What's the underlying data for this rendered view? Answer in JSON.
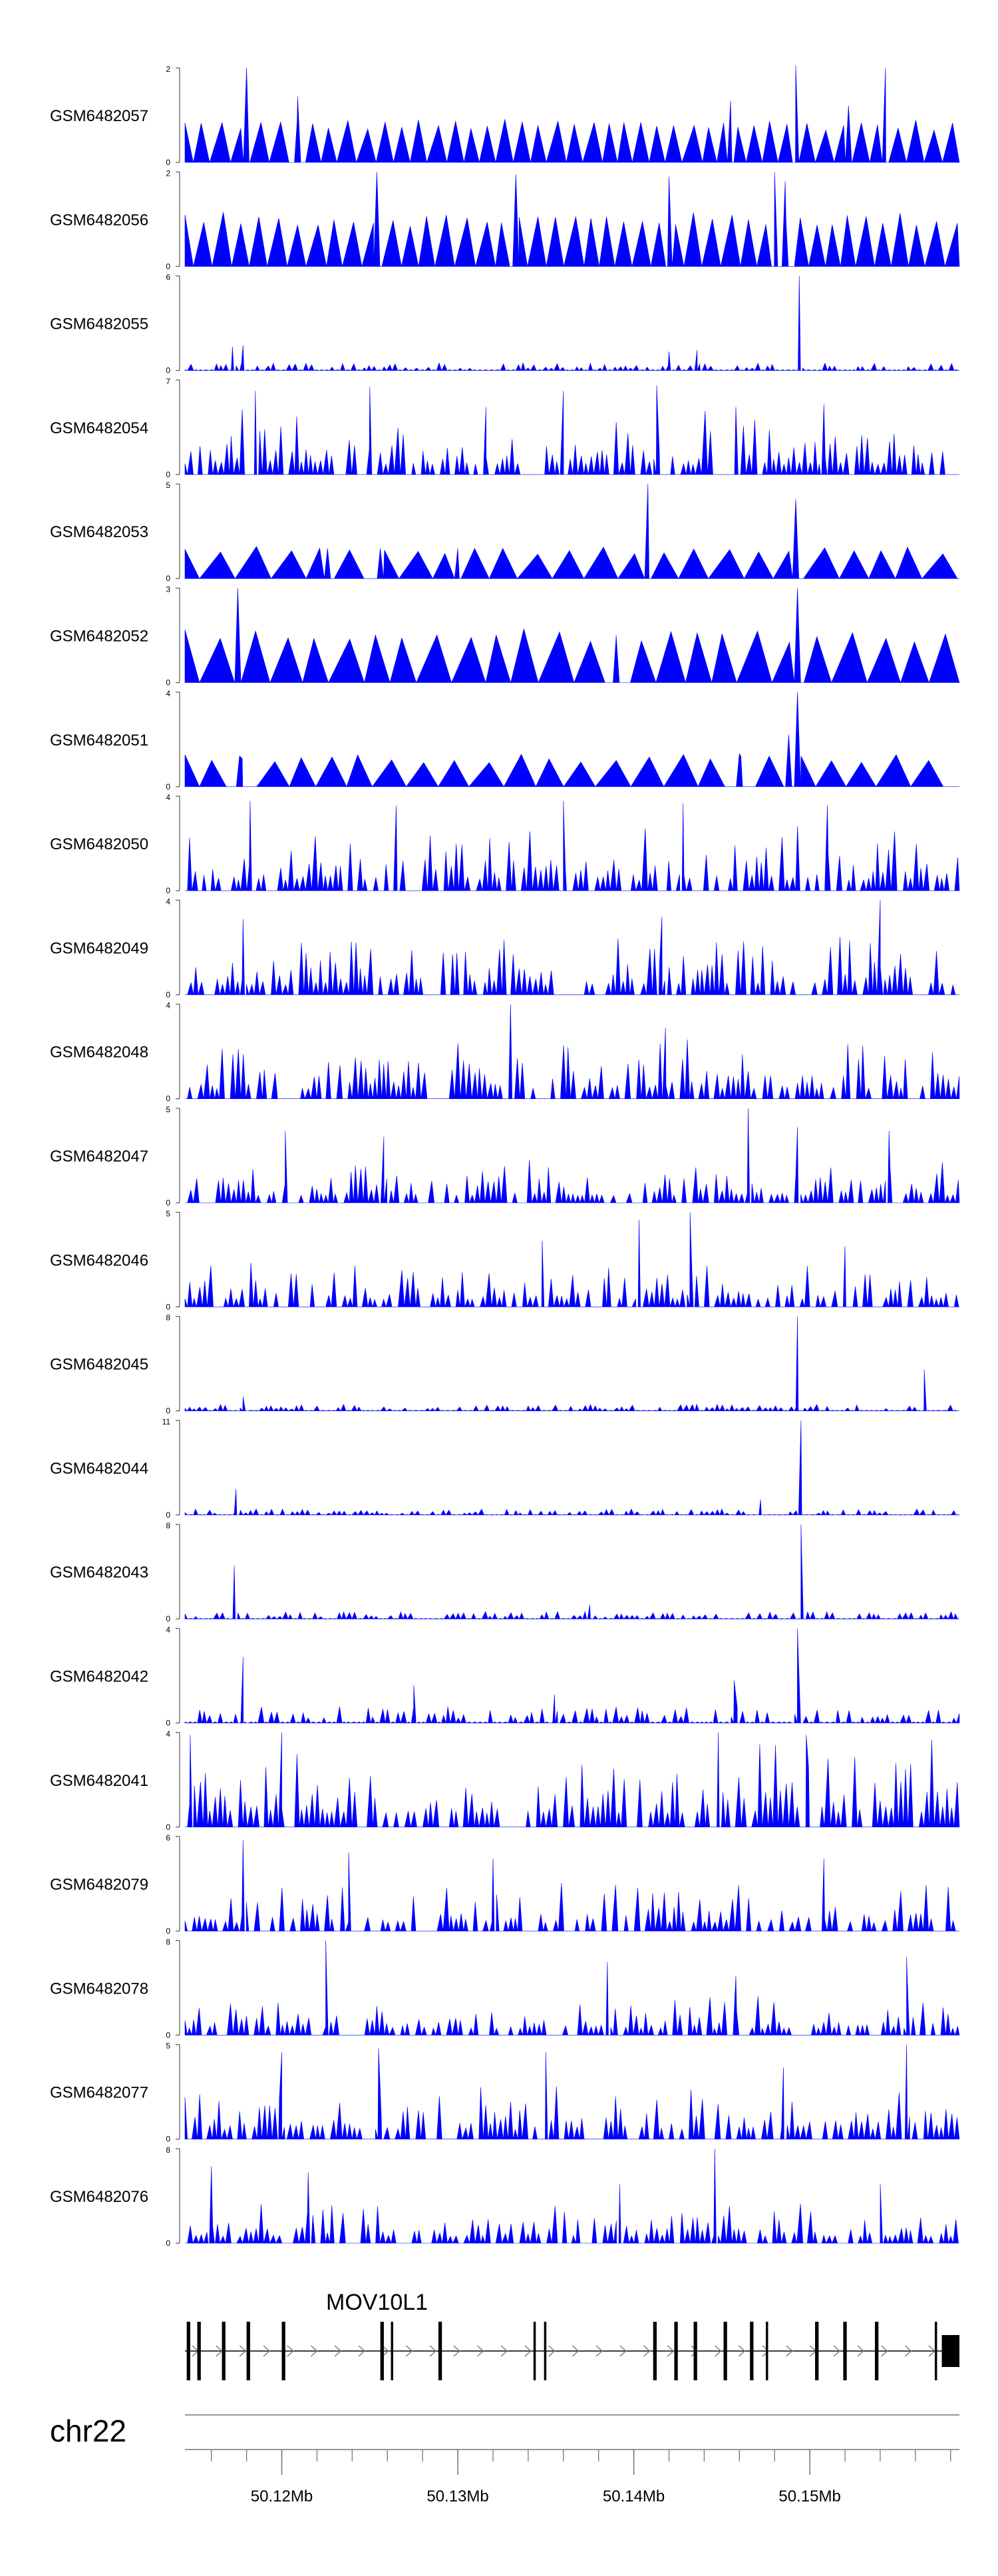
{
  "chart_data": {
    "type": "area",
    "color": "#0000ff",
    "x_range": [
      50.1145,
      50.1585
    ],
    "x_unit": "Mb",
    "tracks": [
      {
        "name": "GSM6482057",
        "ymax": 2,
        "peaks": [
          [
            50.118,
            2
          ],
          [
            50.1209,
            1.4
          ],
          [
            50.1455,
            1.3
          ],
          [
            50.1492,
            2.05
          ],
          [
            50.1522,
            1.2
          ],
          [
            50.1543,
            2
          ]
        ],
        "style": "spaced",
        "base": 0.8
      },
      {
        "name": "GSM6482056",
        "ymax": 2,
        "peaks": [
          [
            50.1254,
            2
          ],
          [
            50.1333,
            1.95
          ],
          [
            50.142,
            1.9
          ],
          [
            50.148,
            2
          ],
          [
            50.1486,
            1.8
          ]
        ],
        "style": "spaced",
        "base": 1.0
      },
      {
        "name": "GSM6482055",
        "ymax": 6,
        "peaks": [
          [
            50.1172,
            1.5
          ],
          [
            50.1178,
            1.6
          ],
          [
            50.1494,
            6
          ],
          [
            50.142,
            1.2
          ],
          [
            50.1436,
            1.3
          ]
        ],
        "style": "lowdense",
        "base": 0.35
      },
      {
        "name": "GSM6482054",
        "ymax": 7,
        "peaks": [
          [
            50.1185,
            6.2
          ],
          [
            50.125,
            6.5
          ],
          [
            50.1316,
            5.0
          ],
          [
            50.136,
            6.2
          ],
          [
            50.1413,
            6.6
          ],
          [
            50.1458,
            5.0
          ],
          [
            50.1508,
            5.2
          ]
        ],
        "style": "dense",
        "base": 2.5
      },
      {
        "name": "GSM6482053",
        "ymax": 5,
        "peaks": [
          [
            50.1408,
            5
          ],
          [
            50.1492,
            4.2
          ],
          [
            50.13,
            1.6
          ],
          [
            50.1226,
            1.6
          ],
          [
            50.1256,
            1.6
          ]
        ],
        "style": "wide",
        "base": 1.5
      },
      {
        "name": "GSM6482052",
        "ymax": 3,
        "peaks": [
          [
            50.1175,
            3
          ],
          [
            50.1493,
            3
          ],
          [
            50.139,
            1.5
          ]
        ],
        "style": "wide",
        "base": 1.5
      },
      {
        "name": "GSM6482051",
        "ymax": 4,
        "peaks": [
          [
            50.1493,
            4
          ],
          [
            50.1488,
            2.2
          ],
          [
            50.146,
            1.4
          ],
          [
            50.1176,
            1.3
          ]
        ],
        "style": "wide",
        "base": 1.2
      },
      {
        "name": "GSM6482050",
        "ymax": 4,
        "peaks": [
          [
            50.1182,
            3.8
          ],
          [
            50.1265,
            3.6
          ],
          [
            50.136,
            3.8
          ],
          [
            50.1428,
            3.7
          ],
          [
            50.151,
            3.6
          ]
        ],
        "style": "dense",
        "base": 1.5
      },
      {
        "name": "GSM6482049",
        "ymax": 4,
        "peaks": [
          [
            50.154,
            4
          ],
          [
            50.1178,
            3.2
          ],
          [
            50.1416,
            3.3
          ]
        ],
        "style": "dense",
        "base": 1.4
      },
      {
        "name": "GSM6482048",
        "ymax": 4,
        "peaks": [
          [
            50.133,
            4
          ],
          [
            50.1418,
            3.0
          ]
        ],
        "style": "dense",
        "base": 1.4
      },
      {
        "name": "GSM6482047",
        "ymax": 5,
        "peaks": [
          [
            50.1465,
            5
          ],
          [
            50.1202,
            3.8
          ],
          [
            50.1258,
            3.5
          ],
          [
            50.1493,
            4.0
          ],
          [
            50.1545,
            3.8
          ]
        ],
        "style": "dense",
        "base": 1.3
      },
      {
        "name": "GSM6482046",
        "ymax": 5,
        "peaks": [
          [
            50.1403,
            4.6
          ],
          [
            50.1432,
            5
          ],
          [
            50.1348,
            3.5
          ],
          [
            50.152,
            3.2
          ]
        ],
        "style": "dense",
        "base": 1.3
      },
      {
        "name": "GSM6482045",
        "ymax": 8,
        "peaks": [
          [
            50.1493,
            8
          ],
          [
            50.1565,
            3.5
          ],
          [
            50.1178,
            1.2
          ]
        ],
        "style": "lowdense",
        "base": 0.4
      },
      {
        "name": "GSM6482044",
        "ymax": 11,
        "peaks": [
          [
            50.1495,
            11
          ],
          [
            50.1174,
            3
          ],
          [
            50.1472,
            1.8
          ]
        ],
        "style": "lowdense",
        "base": 0.5
      },
      {
        "name": "GSM6482043",
        "ymax": 8,
        "peaks": [
          [
            50.1173,
            4.5
          ],
          [
            50.1495,
            8
          ],
          [
            50.1375,
            1.2
          ]
        ],
        "style": "lowdense",
        "base": 0.45
      },
      {
        "name": "GSM6482042",
        "ymax": 4,
        "peaks": [
          [
            50.1178,
            2.8
          ],
          [
            50.1493,
            4
          ],
          [
            50.1275,
            1.6
          ],
          [
            50.1355,
            1.2
          ],
          [
            50.1457,
            1.8
          ]
        ],
        "style": "lowdense",
        "base": 0.5
      },
      {
        "name": "GSM6482041",
        "ymax": 4,
        "peaks": [
          [
            50.1148,
            3.9
          ],
          [
            50.12,
            4
          ],
          [
            50.1448,
            4
          ],
          [
            50.1498,
            3.9
          ]
        ],
        "style": "dense",
        "base": 2.0
      },
      {
        "name": "GSM6482079",
        "ymax": 6,
        "peaks": [
          [
            50.1178,
            5.8
          ],
          [
            50.1238,
            5
          ],
          [
            50.132,
            4.6
          ],
          [
            50.1508,
            4.6
          ]
        ],
        "style": "dense",
        "base": 1.8
      },
      {
        "name": "GSM6482078",
        "ymax": 8,
        "peaks": [
          [
            50.1225,
            8
          ],
          [
            50.1385,
            6.2
          ],
          [
            50.1555,
            6.6
          ],
          [
            50.1458,
            5.0
          ]
        ],
        "style": "dense",
        "base": 1.9
      },
      {
        "name": "GSM6482077",
        "ymax": 5,
        "peaks": [
          [
            50.12,
            4.6
          ],
          [
            50.1255,
            4.8
          ],
          [
            50.135,
            4.6
          ],
          [
            50.1555,
            5
          ],
          [
            50.1485,
            3.8
          ]
        ],
        "style": "dense",
        "base": 1.7
      },
      {
        "name": "GSM6482076",
        "ymax": 8,
        "peaks": [
          [
            50.116,
            6.5
          ],
          [
            50.1215,
            6.0
          ],
          [
            50.1446,
            8
          ],
          [
            50.1392,
            5.0
          ],
          [
            50.154,
            5.0
          ]
        ],
        "style": "dense",
        "base": 1.9
      }
    ],
    "gene": {
      "name": "MOV10L1",
      "start": 50.1145,
      "end": 50.1585,
      "exons": [
        [
          50.1146,
          50.1148
        ],
        [
          50.1152,
          50.1154
        ],
        [
          50.1166,
          50.1168
        ],
        [
          50.118,
          50.1182
        ],
        [
          50.12,
          50.1202
        ],
        [
          50.1256,
          50.1258
        ],
        [
          50.1262,
          50.1263
        ],
        [
          50.1289,
          50.1291
        ],
        [
          50.1343,
          50.1344
        ],
        [
          50.1349,
          50.135
        ],
        [
          50.1411,
          50.1413
        ],
        [
          50.1423,
          50.1425
        ],
        [
          50.1434,
          50.1436
        ],
        [
          50.1451,
          50.1453
        ],
        [
          50.1466,
          50.1468
        ],
        [
          50.1475,
          50.1476
        ],
        [
          50.1503,
          50.1505
        ],
        [
          50.1519,
          50.1521
        ],
        [
          50.1537,
          50.1539
        ],
        [
          50.1571,
          50.1572
        ],
        [
          50.1575,
          50.1585
        ]
      ]
    },
    "axis": {
      "chromosome": "chr22",
      "ticks": [
        50.12,
        50.13,
        50.14,
        50.15
      ],
      "tick_labels": [
        "50.12Mb",
        "50.13Mb",
        "50.14Mb",
        "50.15Mb"
      ],
      "minor_step": 0.002
    }
  }
}
